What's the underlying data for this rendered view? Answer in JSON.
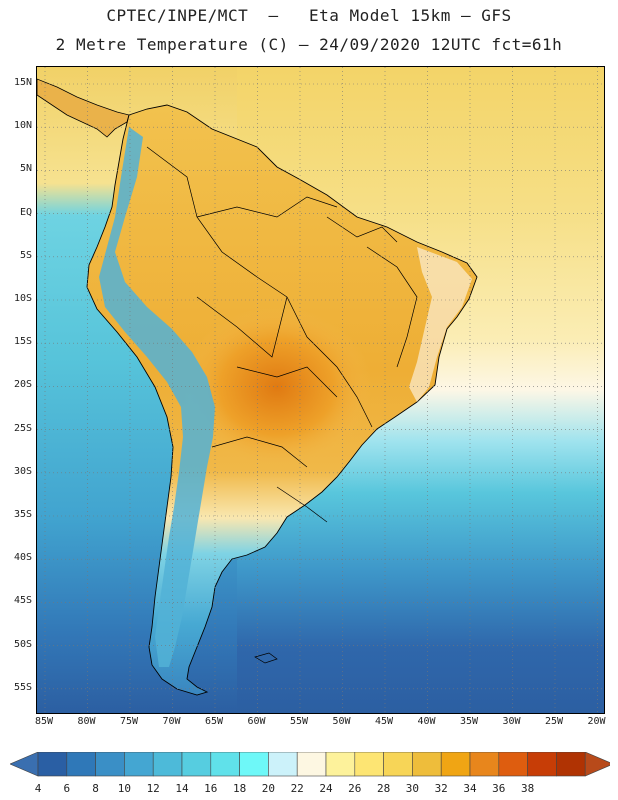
{
  "header": {
    "line1": "CPTEC/INPE/MCT  –   Eta Model 15km – GFS",
    "line2": "2 Metre Temperature (C) – 24/09/2020 12UTC fct=61h"
  },
  "map": {
    "lat_labels": [
      "15N",
      "10N",
      "5N",
      "EQ",
      "5S",
      "10S",
      "15S",
      "20S",
      "25S",
      "30S",
      "35S",
      "40S",
      "45S",
      "50S",
      "55S"
    ],
    "lon_labels": [
      "85W",
      "80W",
      "75W",
      "70W",
      "65W",
      "60W",
      "55W",
      "50W",
      "45W",
      "40W",
      "35W",
      "30W",
      "25W",
      "20W"
    ]
  },
  "legend": {
    "levels": [
      "4",
      "6",
      "8",
      "10",
      "12",
      "14",
      "16",
      "18",
      "20",
      "22",
      "24",
      "26",
      "28",
      "30",
      "32",
      "34",
      "36",
      "38"
    ],
    "colors": [
      "#2a5fa4",
      "#2f78b8",
      "#3a8fc6",
      "#44a6d2",
      "#4dbad9",
      "#56cde0",
      "#60e1ea",
      "#6ef8f8",
      "#ccf2fa",
      "#fdf7e2",
      "#fdf29b",
      "#fde573",
      "#f7d557",
      "#eebd3b",
      "#f0a514",
      "#e8861c",
      "#de5d0f",
      "#c73d06",
      "#b03303"
    ],
    "below_color": "#3a6fb0",
    "above_color": "#b84a1a"
  },
  "palette": {
    "ocean_north": "#f4d86c",
    "ocean_mid": "#fbe9a0",
    "ocean_cool": "#5ec8dc",
    "ocean_cold": "#3f98c8",
    "ocean_south": "#2f5fa2",
    "land_warm": "#f1b545",
    "land_hot": "#e88a1c",
    "andes": "#4fa8d0"
  }
}
